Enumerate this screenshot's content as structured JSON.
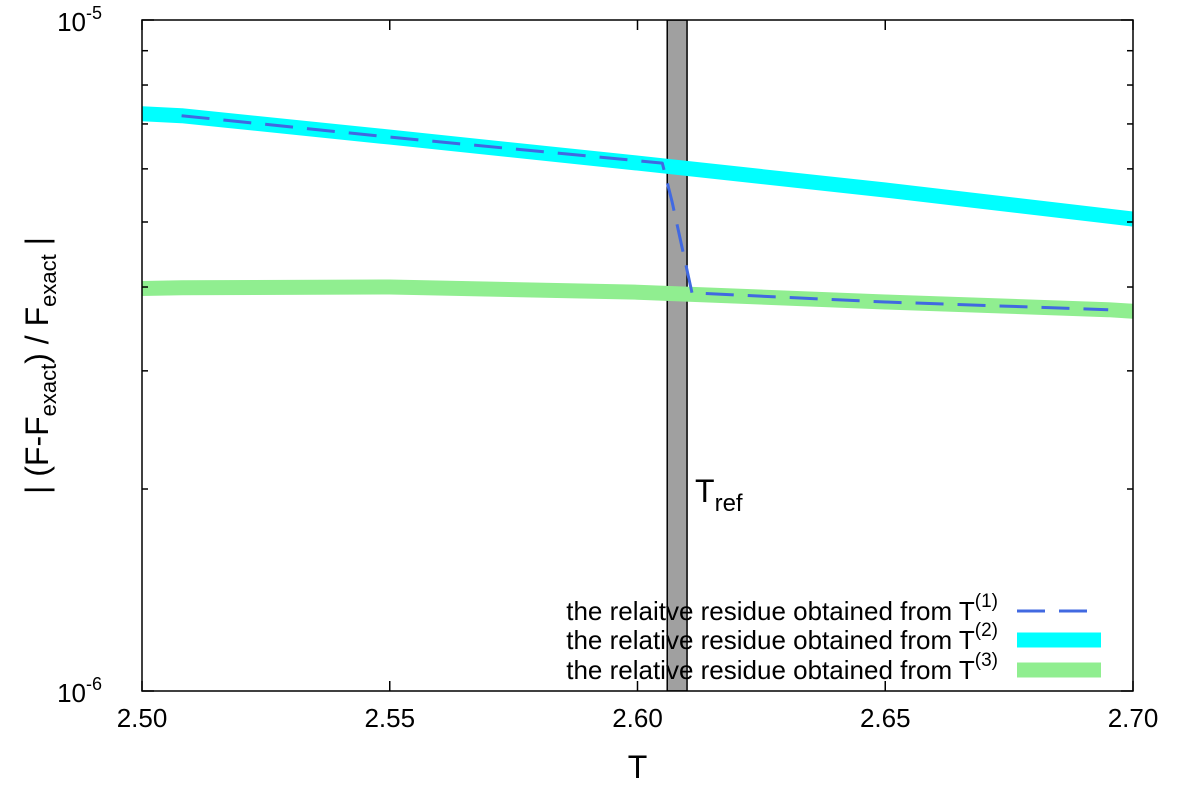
{
  "chart_data": {
    "type": "line",
    "title": "",
    "xlabel": "T",
    "ylabel": {
      "parts": [
        {
          "text": "| (F-F",
          "sub": false
        },
        {
          "text": "exact",
          "sub": true
        },
        {
          "text": ") / F",
          "sub": false
        },
        {
          "text": "exact",
          "sub": true
        },
        {
          "text": " |",
          "sub": false
        }
      ]
    },
    "xlim": [
      2.5,
      2.7
    ],
    "ylim": [
      1e-06,
      1e-05
    ],
    "yscale": "log",
    "grid": false,
    "legend_position": "bottom-right",
    "x_ticks": [
      {
        "value": 2.5,
        "label": "2.50"
      },
      {
        "value": 2.55,
        "label": "2.55"
      },
      {
        "value": 2.6,
        "label": "2.60"
      },
      {
        "value": 2.65,
        "label": "2.65"
      },
      {
        "value": 2.7,
        "label": "2.70"
      }
    ],
    "y_tick_labels": [
      {
        "value": 1e-06,
        "base": "10",
        "exp": "-6"
      },
      {
        "value": 1e-05,
        "base": "10",
        "exp": "-5"
      }
    ],
    "y_minor_ticks": [
      2e-06,
      3e-06,
      4e-06,
      5e-06,
      6e-06,
      7e-06,
      8e-06,
      9e-06
    ],
    "ref_band": {
      "x0": 2.606,
      "x1": 2.61,
      "color": "#a0a0a0",
      "label_main": "T",
      "label_sub": "ref"
    },
    "series": [
      {
        "name_main": "the relative residue obtained from T",
        "name_sup": "(2)",
        "color": "#00ffff",
        "style": "thick",
        "x": [
          2.5,
          2.508,
          2.55,
          2.6,
          2.65,
          2.7
        ],
        "y": [
          7.25e-06,
          7.2e-06,
          6.69e-06,
          6.12e-06,
          5.58e-06,
          5.05e-06
        ]
      },
      {
        "name_main": "the relative residue obtained from T",
        "name_sup": "(3)",
        "color": "#90ee90",
        "style": "thick",
        "x": [
          2.5,
          2.508,
          2.55,
          2.6,
          2.65,
          2.695,
          2.7
        ],
        "y": [
          3.98e-06,
          3.99e-06,
          4e-06,
          3.93e-06,
          3.8e-06,
          3.7e-06,
          3.68e-06
        ]
      },
      {
        "name_main": "the relaitve residue obtained from T",
        "name_sup": "(1)",
        "color": "#4169e1",
        "style": "dashed",
        "x": [
          2.508,
          2.55,
          2.605,
          2.607,
          2.611,
          2.65,
          2.695
        ],
        "y": [
          7.2e-06,
          6.69e-06,
          6.12e-06,
          5.35e-06,
          3.92e-06,
          3.8e-06,
          3.7e-06
        ]
      }
    ]
  }
}
